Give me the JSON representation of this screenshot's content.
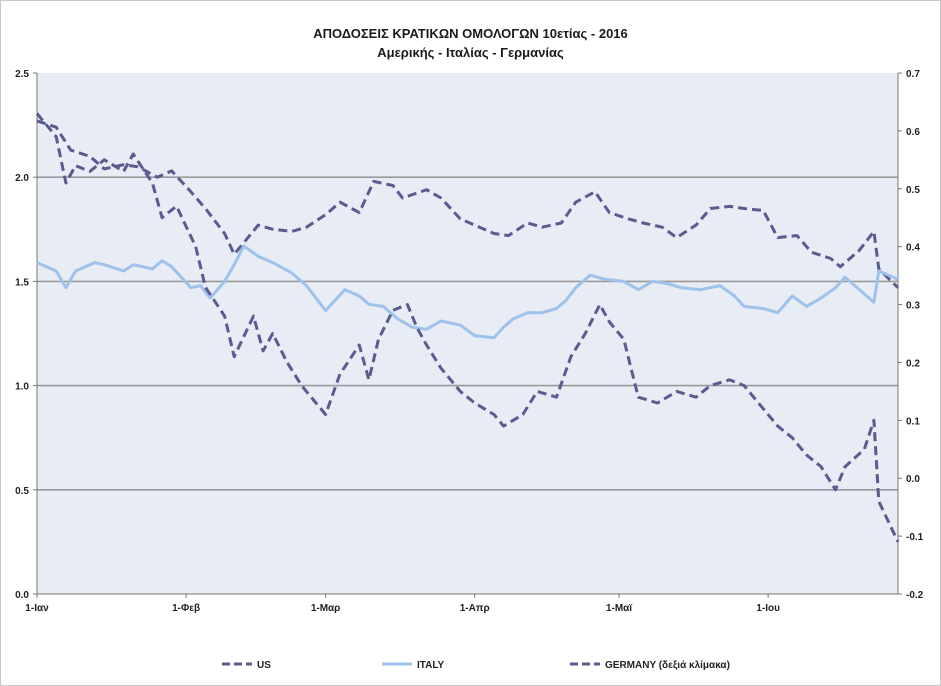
{
  "chart_data": {
    "type": "line",
    "title": "ΑΠΟΔΟΣΕΙΣ ΚΡΑΤΙΚΩΝ ΟΜΟΛΟΓΩΝ 10ετίας - 2016",
    "subtitle": "Αμερικής - Ιταλίας - Γερμανίας",
    "x_start": "2016-01-01",
    "x_end": "2016-06-28",
    "x_ticks": [
      "1-Ιαν",
      "1-Φεβ",
      "1-Μαρ",
      "1-Απρ",
      "1-Μαϊ",
      "1-Ιου"
    ],
    "x_tick_dates": [
      "2016-01-01",
      "2016-02-01",
      "2016-03-01",
      "2016-04-01",
      "2016-05-01",
      "2016-06-01"
    ],
    "y_left": {
      "min": 0.0,
      "max": 2.5,
      "ticks": [
        "0.0",
        "0.5",
        "1.0",
        "1.5",
        "2.0",
        "2.5"
      ]
    },
    "y_right": {
      "min": -0.2,
      "max": 0.7,
      "ticks": [
        "-0.2",
        "-0.1",
        "0.0",
        "0.1",
        "0.2",
        "0.3",
        "0.4",
        "0.5",
        "0.6",
        "0.7"
      ]
    },
    "grid": true,
    "legend_position": "bottom",
    "series": [
      {
        "name": "US",
        "axis": "left",
        "color": "#5b5b8f",
        "style": "dashed",
        "points": [
          [
            "2016-01-01",
            2.27
          ],
          [
            "2016-01-05",
            2.24
          ],
          [
            "2016-01-08",
            2.13
          ],
          [
            "2016-01-12",
            2.1
          ],
          [
            "2016-01-15",
            2.04
          ],
          [
            "2016-01-19",
            2.06
          ],
          [
            "2016-01-22",
            2.05
          ],
          [
            "2016-01-26",
            2.0
          ],
          [
            "2016-01-29",
            2.03
          ],
          [
            "2016-02-02",
            1.93
          ],
          [
            "2016-02-05",
            1.85
          ],
          [
            "2016-02-09",
            1.73
          ],
          [
            "2016-02-11",
            1.63
          ],
          [
            "2016-02-16",
            1.77
          ],
          [
            "2016-02-19",
            1.75
          ],
          [
            "2016-02-23",
            1.74
          ],
          [
            "2016-02-26",
            1.76
          ],
          [
            "2016-03-01",
            1.82
          ],
          [
            "2016-03-04",
            1.88
          ],
          [
            "2016-03-08",
            1.83
          ],
          [
            "2016-03-11",
            1.98
          ],
          [
            "2016-03-15",
            1.96
          ],
          [
            "2016-03-17",
            1.9
          ],
          [
            "2016-03-22",
            1.94
          ],
          [
            "2016-03-25",
            1.9
          ],
          [
            "2016-03-29",
            1.8
          ],
          [
            "2016-04-01",
            1.77
          ],
          [
            "2016-04-05",
            1.73
          ],
          [
            "2016-04-08",
            1.72
          ],
          [
            "2016-04-12",
            1.78
          ],
          [
            "2016-04-15",
            1.76
          ],
          [
            "2016-04-19",
            1.78
          ],
          [
            "2016-04-22",
            1.88
          ],
          [
            "2016-04-26",
            1.93
          ],
          [
            "2016-04-29",
            1.83
          ],
          [
            "2016-05-03",
            1.8
          ],
          [
            "2016-05-06",
            1.78
          ],
          [
            "2016-05-10",
            1.76
          ],
          [
            "2016-05-13",
            1.71
          ],
          [
            "2016-05-17",
            1.77
          ],
          [
            "2016-05-20",
            1.85
          ],
          [
            "2016-05-24",
            1.86
          ],
          [
            "2016-05-27",
            1.85
          ],
          [
            "2016-05-31",
            1.84
          ],
          [
            "2016-06-03",
            1.71
          ],
          [
            "2016-06-07",
            1.72
          ],
          [
            "2016-06-10",
            1.64
          ],
          [
            "2016-06-14",
            1.61
          ],
          [
            "2016-06-16",
            1.57
          ],
          [
            "2016-06-20",
            1.65
          ],
          [
            "2016-06-23",
            1.74
          ],
          [
            "2016-06-24",
            1.56
          ],
          [
            "2016-06-28",
            1.47
          ]
        ]
      },
      {
        "name": "ITALY",
        "axis": "left",
        "color": "#9dc3ec",
        "style": "solid",
        "points": [
          [
            "2016-01-01",
            1.59
          ],
          [
            "2016-01-05",
            1.55
          ],
          [
            "2016-01-07",
            1.47
          ],
          [
            "2016-01-09",
            1.55
          ],
          [
            "2016-01-13",
            1.59
          ],
          [
            "2016-01-15",
            1.58
          ],
          [
            "2016-01-19",
            1.55
          ],
          [
            "2016-01-21",
            1.58
          ],
          [
            "2016-01-25",
            1.56
          ],
          [
            "2016-01-27",
            1.6
          ],
          [
            "2016-01-29",
            1.57
          ],
          [
            "2016-02-02",
            1.47
          ],
          [
            "2016-02-04",
            1.48
          ],
          [
            "2016-02-06",
            1.42
          ],
          [
            "2016-02-09",
            1.5
          ],
          [
            "2016-02-11",
            1.58
          ],
          [
            "2016-02-13",
            1.67
          ],
          [
            "2016-02-16",
            1.62
          ],
          [
            "2016-02-19",
            1.59
          ],
          [
            "2016-02-23",
            1.54
          ],
          [
            "2016-02-26",
            1.48
          ],
          [
            "2016-03-01",
            1.36
          ],
          [
            "2016-03-03",
            1.41
          ],
          [
            "2016-03-05",
            1.46
          ],
          [
            "2016-03-08",
            1.43
          ],
          [
            "2016-03-10",
            1.39
          ],
          [
            "2016-03-13",
            1.38
          ],
          [
            "2016-03-16",
            1.32
          ],
          [
            "2016-03-19",
            1.28
          ],
          [
            "2016-03-22",
            1.27
          ],
          [
            "2016-03-25",
            1.31
          ],
          [
            "2016-03-29",
            1.29
          ],
          [
            "2016-04-01",
            1.24
          ],
          [
            "2016-04-05",
            1.23
          ],
          [
            "2016-04-07",
            1.28
          ],
          [
            "2016-04-09",
            1.32
          ],
          [
            "2016-04-12",
            1.35
          ],
          [
            "2016-04-15",
            1.35
          ],
          [
            "2016-04-18",
            1.37
          ],
          [
            "2016-04-20",
            1.41
          ],
          [
            "2016-04-22",
            1.47
          ],
          [
            "2016-04-25",
            1.53
          ],
          [
            "2016-04-28",
            1.51
          ],
          [
            "2016-05-02",
            1.5
          ],
          [
            "2016-05-05",
            1.46
          ],
          [
            "2016-05-08",
            1.5
          ],
          [
            "2016-05-11",
            1.49
          ],
          [
            "2016-05-14",
            1.47
          ],
          [
            "2016-05-18",
            1.46
          ],
          [
            "2016-05-22",
            1.48
          ],
          [
            "2016-05-25",
            1.43
          ],
          [
            "2016-05-27",
            1.38
          ],
          [
            "2016-05-31",
            1.37
          ],
          [
            "2016-06-03",
            1.35
          ],
          [
            "2016-06-06",
            1.43
          ],
          [
            "2016-06-09",
            1.38
          ],
          [
            "2016-06-12",
            1.42
          ],
          [
            "2016-06-15",
            1.47
          ],
          [
            "2016-06-17",
            1.52
          ],
          [
            "2016-06-20",
            1.46
          ],
          [
            "2016-06-23",
            1.4
          ],
          [
            "2016-06-24",
            1.55
          ],
          [
            "2016-06-28",
            1.51
          ]
        ]
      },
      {
        "name": "GERMANY (δεξιά κλίμακα)",
        "axis": "right",
        "color": "#5b5b8f",
        "style": "dashed",
        "points": [
          [
            "2016-01-01",
            0.63
          ],
          [
            "2016-01-05",
            0.59
          ],
          [
            "2016-01-07",
            0.51
          ],
          [
            "2016-01-09",
            0.54
          ],
          [
            "2016-01-12",
            0.53
          ],
          [
            "2016-01-15",
            0.55
          ],
          [
            "2016-01-19",
            0.53
          ],
          [
            "2016-01-21",
            0.56
          ],
          [
            "2016-01-25",
            0.51
          ],
          [
            "2016-01-27",
            0.45
          ],
          [
            "2016-01-30",
            0.47
          ],
          [
            "2016-02-03",
            0.4
          ],
          [
            "2016-02-05",
            0.33
          ],
          [
            "2016-02-09",
            0.28
          ],
          [
            "2016-02-11",
            0.21
          ],
          [
            "2016-02-15",
            0.28
          ],
          [
            "2016-02-17",
            0.22
          ],
          [
            "2016-02-19",
            0.25
          ],
          [
            "2016-02-22",
            0.2
          ],
          [
            "2016-02-25",
            0.16
          ],
          [
            "2016-02-28",
            0.13
          ],
          [
            "2016-03-01",
            0.11
          ],
          [
            "2016-03-04",
            0.18
          ],
          [
            "2016-03-08",
            0.23
          ],
          [
            "2016-03-10",
            0.17
          ],
          [
            "2016-03-12",
            0.24
          ],
          [
            "2016-03-15",
            0.29
          ],
          [
            "2016-03-18",
            0.3
          ],
          [
            "2016-03-20",
            0.26
          ],
          [
            "2016-03-22",
            0.23
          ],
          [
            "2016-03-25",
            0.19
          ],
          [
            "2016-03-29",
            0.15
          ],
          [
            "2016-04-01",
            0.13
          ],
          [
            "2016-04-05",
            0.11
          ],
          [
            "2016-04-07",
            0.09
          ],
          [
            "2016-04-11",
            0.11
          ],
          [
            "2016-04-14",
            0.15
          ],
          [
            "2016-04-18",
            0.14
          ],
          [
            "2016-04-21",
            0.21
          ],
          [
            "2016-04-24",
            0.25
          ],
          [
            "2016-04-27",
            0.3
          ],
          [
            "2016-04-29",
            0.27
          ],
          [
            "2016-05-02",
            0.24
          ],
          [
            "2016-05-05",
            0.14
          ],
          [
            "2016-05-09",
            0.13
          ],
          [
            "2016-05-13",
            0.15
          ],
          [
            "2016-05-17",
            0.14
          ],
          [
            "2016-05-20",
            0.16
          ],
          [
            "2016-05-24",
            0.17
          ],
          [
            "2016-05-27",
            0.16
          ],
          [
            "2016-05-31",
            0.12
          ],
          [
            "2016-06-03",
            0.09
          ],
          [
            "2016-06-06",
            0.07
          ],
          [
            "2016-06-09",
            0.04
          ],
          [
            "2016-06-12",
            0.02
          ],
          [
            "2016-06-15",
            -0.02
          ],
          [
            "2016-06-17",
            0.02
          ],
          [
            "2016-06-21",
            0.05
          ],
          [
            "2016-06-23",
            0.1
          ],
          [
            "2016-06-24",
            -0.04
          ],
          [
            "2016-06-28",
            -0.11
          ]
        ]
      }
    ]
  }
}
